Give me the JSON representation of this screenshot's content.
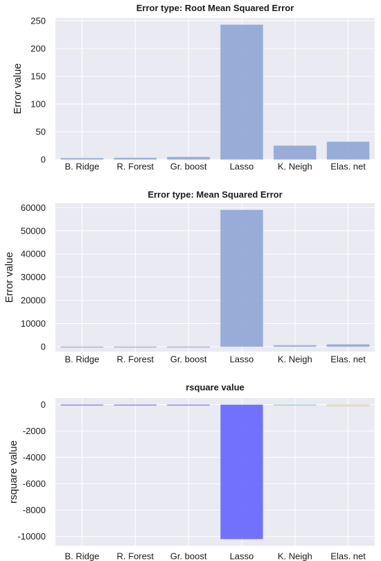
{
  "chart_data": [
    {
      "type": "bar",
      "title": "Error type: Root Mean Squared Error",
      "ylabel": "Error value",
      "xlabel": "",
      "categories": [
        "B. Ridge",
        "R. Forest",
        "Gr. boost",
        "Lasso",
        "K. Neigh",
        "Elas. net"
      ],
      "values": [
        2.5,
        3,
        4.5,
        243,
        25,
        32
      ],
      "yticks": [
        0,
        50,
        100,
        150,
        200,
        250
      ],
      "ylim": [
        0,
        255
      ],
      "colors": [
        "#8fa5d5",
        "#8fa5d5",
        "#8fa5d5",
        "#8fa5d5",
        "#8fa5d5",
        "#8fa5d5"
      ],
      "grid": true
    },
    {
      "type": "bar",
      "title": "Error type: Mean Squared Error",
      "ylabel": "Error value",
      "xlabel": "",
      "categories": [
        "B. Ridge",
        "R. Forest",
        "Gr. boost",
        "Lasso",
        "K. Neigh",
        "Elas. net"
      ],
      "values": [
        6,
        9,
        20,
        59000,
        630,
        1020
      ],
      "yticks": [
        0,
        10000,
        20000,
        30000,
        40000,
        50000,
        60000
      ],
      "ylim": [
        -2100,
        61900
      ],
      "colors": [
        "#8fa5d5",
        "#8fa5d5",
        "#8fa5d5",
        "#8fa5d5",
        "#8fa5d5",
        "#8fa5d5"
      ],
      "grid": true
    },
    {
      "type": "bar",
      "title": "rsquare value",
      "ylabel": "rsquare value",
      "xlabel": "",
      "categories": [
        "B. Ridge",
        "R. Forest",
        "Gr. boost",
        "Lasso",
        "K. Neigh",
        "Elas. net"
      ],
      "values": [
        0.9,
        0.85,
        0.7,
        -10200,
        -70,
        -120
      ],
      "yticks": [
        -10000,
        -8000,
        -6000,
        -4000,
        -2000,
        0
      ],
      "ylim": [
        -10700,
        500
      ],
      "colors": [
        "#4d4dff",
        "#4d4dff",
        "#4d4dff",
        "#6464ff",
        "#7fe0e0",
        "#f5e77a"
      ],
      "grid": true
    }
  ]
}
